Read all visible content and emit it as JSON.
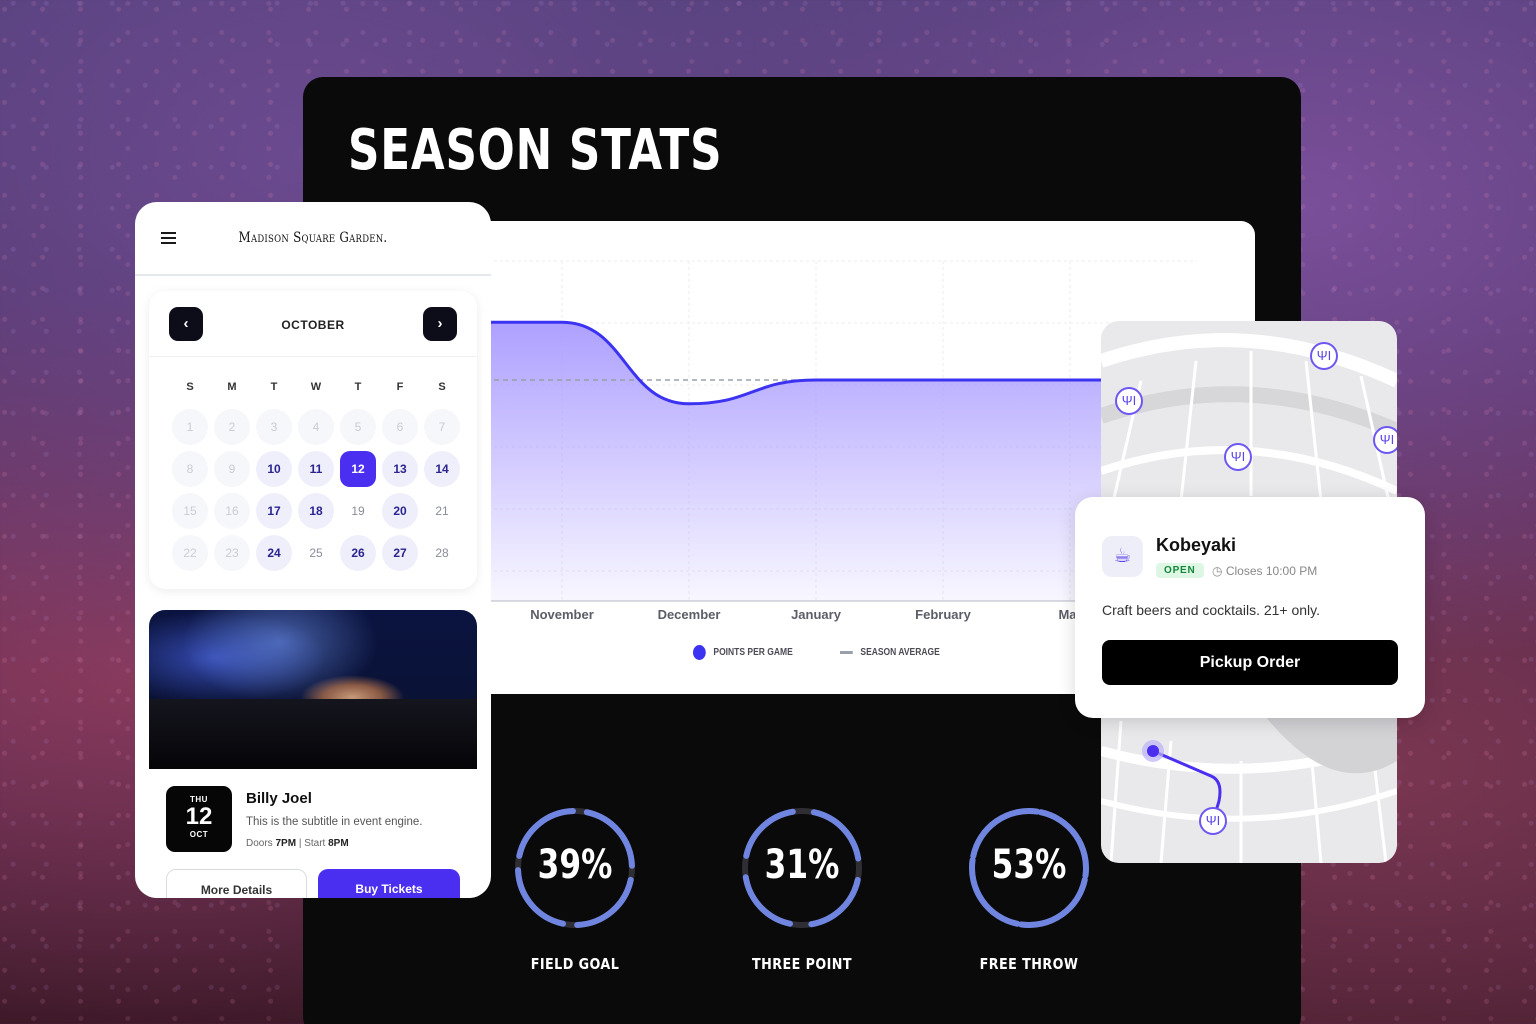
{
  "stats": {
    "title": "SEASON STATS",
    "legend": {
      "points": "POINTS PER GAME",
      "average": "SEASON AVERAGE"
    },
    "gauges": [
      {
        "value": "39%",
        "label": "FIELD GOAL",
        "fraction": 0.39
      },
      {
        "value": "31%",
        "label": "THREE POINT",
        "fraction": 0.31
      },
      {
        "value": "53%",
        "label": "FREE THROW",
        "fraction": 0.53
      }
    ]
  },
  "chart_data": {
    "type": "area",
    "categories": [
      "November",
      "December",
      "January",
      "February",
      "Mar"
    ],
    "series": [
      {
        "name": "POINTS PER GAME",
        "values": [
          82,
          58,
          65,
          65,
          65
        ]
      },
      {
        "name": "SEASON AVERAGE",
        "values": [
          65,
          65,
          65,
          65,
          65
        ]
      }
    ],
    "ylim": [
      0,
      100
    ],
    "grid": true,
    "legend_position": "bottom",
    "colors": {
      "line": "#3b32f2",
      "fill": "#a99bff",
      "average": "#9aa0aa"
    }
  },
  "phone": {
    "venue": "Madison Square Garden.",
    "calendar": {
      "month": "OCTOBER",
      "prev": "‹",
      "next": "›",
      "dow": [
        "S",
        "M",
        "T",
        "W",
        "T",
        "F",
        "S"
      ],
      "days": [
        {
          "d": "1",
          "s": "past"
        },
        {
          "d": "2",
          "s": "past"
        },
        {
          "d": "3",
          "s": "past"
        },
        {
          "d": "4",
          "s": "past"
        },
        {
          "d": "5",
          "s": "past"
        },
        {
          "d": "6",
          "s": "past"
        },
        {
          "d": "7",
          "s": "past"
        },
        {
          "d": "8",
          "s": "past"
        },
        {
          "d": "9",
          "s": "past"
        },
        {
          "d": "10",
          "s": "avail"
        },
        {
          "d": "11",
          "s": "avail"
        },
        {
          "d": "12",
          "s": "selected"
        },
        {
          "d": "13",
          "s": "avail"
        },
        {
          "d": "14",
          "s": "avail"
        },
        {
          "d": "15",
          "s": "past"
        },
        {
          "d": "16",
          "s": "past"
        },
        {
          "d": "17",
          "s": "avail"
        },
        {
          "d": "18",
          "s": "avail"
        },
        {
          "d": "19",
          "s": "plain"
        },
        {
          "d": "20",
          "s": "avail"
        },
        {
          "d": "21",
          "s": "plain"
        },
        {
          "d": "22",
          "s": "past"
        },
        {
          "d": "23",
          "s": "past"
        },
        {
          "d": "24",
          "s": "avail"
        },
        {
          "d": "25",
          "s": "plain"
        },
        {
          "d": "26",
          "s": "avail"
        },
        {
          "d": "27",
          "s": "avail"
        },
        {
          "d": "28",
          "s": "plain"
        }
      ]
    },
    "event": {
      "dow": "THU",
      "day": "12",
      "month": "OCT",
      "name": "Billy Joel",
      "subtitle": "This is the subtitle in event engine.",
      "doors_label": "Doors",
      "doors_time": "7PM",
      "start_label": "Start",
      "start_time": "8PM",
      "details_label": "More Details",
      "buy_label": "Buy Tickets"
    }
  },
  "vendor": {
    "icon": "coffee-cup-icon",
    "name": "Kobeyaki",
    "status": "OPEN",
    "closes": "Closes 10:00 PM",
    "description": "Craft beers and cocktails. 21+ only.",
    "button": "Pickup Order"
  },
  "map": {
    "pin_icon": "fork-knife-icon",
    "pin_glyph": "ΨΙ"
  }
}
